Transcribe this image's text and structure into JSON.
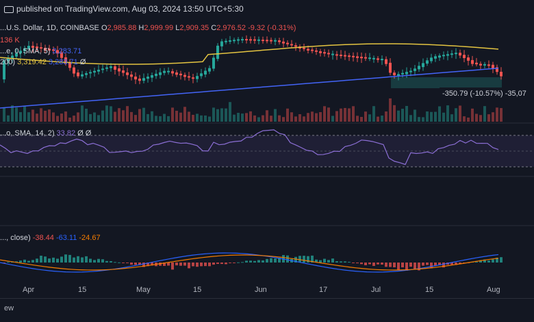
{
  "header": {
    "publish_text": "published on TradingView.com, Aug 03, 2024 13:50 UTC+5:30"
  },
  "symbol": {
    "name": "...U.S. Dollar, 1D, COINBASE",
    "o": "O",
    "o_val": "2,985.88",
    "h": "H",
    "h_val": "2,999.99",
    "l": "L",
    "l_val": "2,909.35",
    "c": "C",
    "c_val": "2,976.52",
    "change": "-9.32 (-0.31%)",
    "volume": "136 K"
  },
  "indicators": {
    "ma50_label": "...e, 0, SMA, 5)",
    "ma50_val": "3,283.71",
    "ma200_label": "200)",
    "ma200_val1": "3,319.42",
    "ma200_val2": "3,283.71",
    "ma200_extra": "Ø",
    "rsi_label": "...o, SMA, 14, 2)",
    "rsi_val": "33.82",
    "rsi_extra": "Ø Ø",
    "macd_label": "..., close)",
    "macd_val1": "-38.44",
    "macd_val2": "-63.11",
    "macd_val3": "-24.67"
  },
  "measure_label": "-350.79 (-10.57%) -35,07",
  "x_axis": [
    "Apr",
    "15",
    "May",
    "15",
    "Jun",
    "17",
    "Jul",
    "15",
    "Aug"
  ],
  "bottom_label": "ew",
  "colors": {
    "up": "#26a69a",
    "down": "#ef5350",
    "ma50": "#e4c441",
    "ma200": "#4364f7",
    "rsi": "#8c6fd6",
    "macd": "#2962ff",
    "signal": "#f57c00"
  }
}
